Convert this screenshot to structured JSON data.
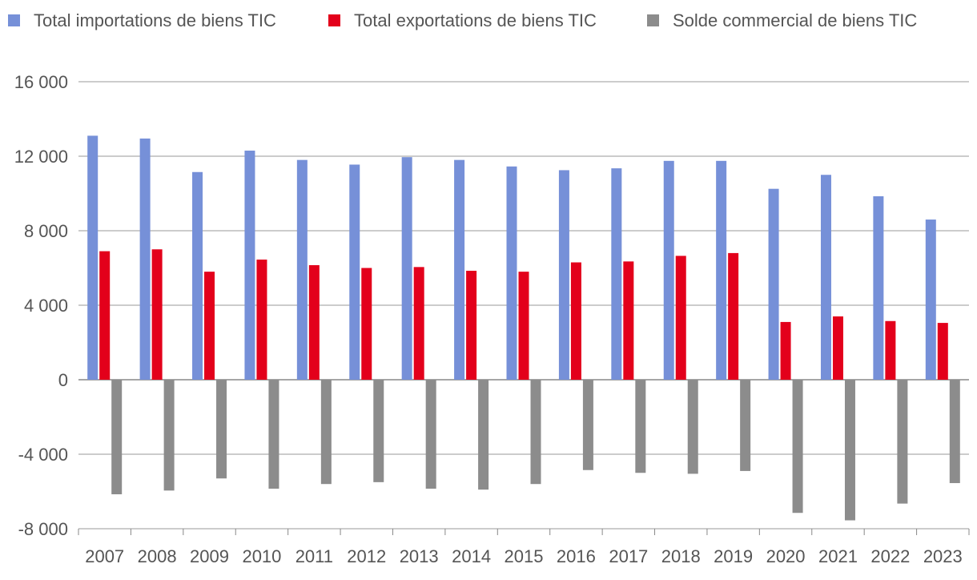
{
  "chart_data": {
    "type": "bar",
    "categories": [
      "2007",
      "2008",
      "2009",
      "2010",
      "2011",
      "2012",
      "2013",
      "2014",
      "2015",
      "2016",
      "2017",
      "2018",
      "2019",
      "2020",
      "2021",
      "2022",
      "2023"
    ],
    "series": [
      {
        "name": "Total importations de biens TIC",
        "color": "#7690D8",
        "values": [
          13100,
          12950,
          11150,
          12300,
          11800,
          11550,
          11950,
          11800,
          11450,
          11250,
          11350,
          11750,
          11750,
          10250,
          11000,
          9850,
          8600
        ]
      },
      {
        "name": "Total exportations de biens TIC",
        "color": "#E3001B",
        "values": [
          6900,
          7000,
          5800,
          6450,
          6150,
          6000,
          6050,
          5850,
          5800,
          6300,
          6350,
          6650,
          6800,
          3100,
          3400,
          3150,
          3050
        ]
      },
      {
        "name": "Solde commercial de biens TIC",
        "color": "#8C8C8C",
        "values": [
          -6150,
          -5950,
          -5300,
          -5850,
          -5600,
          -5500,
          -5850,
          -5900,
          -5600,
          -4850,
          -5000,
          -5050,
          -4900,
          -7150,
          -7550,
          -6650,
          -5550
        ]
      }
    ],
    "yticks": [
      "16 000",
      "12 000",
      "8 000",
      "4 000",
      "0",
      "-4 000",
      "-8 000"
    ],
    "ytick_values": [
      16000,
      12000,
      8000,
      4000,
      0,
      -4000,
      -8000
    ],
    "ylim": [
      -8000,
      16000
    ],
    "grid": true,
    "legend_position": "top"
  }
}
